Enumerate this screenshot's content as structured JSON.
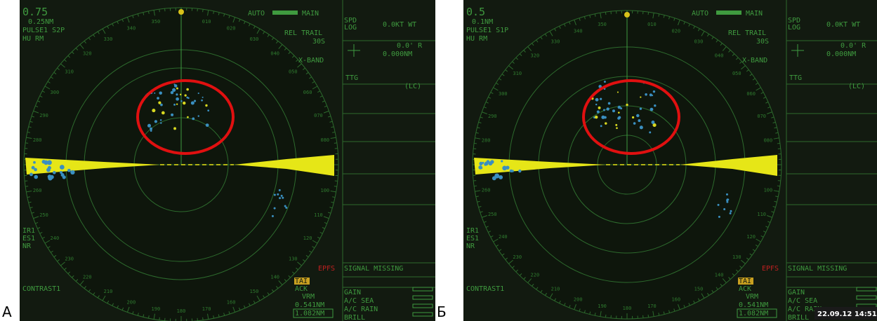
{
  "panels": [
    {
      "label": "А",
      "range": "0.75",
      "rings": "0.25NM",
      "pulse": "PULSE1 S2P",
      "mode": "HU RM",
      "auto": "AUTO",
      "main": "MAIN",
      "trail": "REL TRAIL",
      "trail_time": "30S",
      "band": "X-BAND",
      "spd": "SPD",
      "log": "LOG",
      "speed": "0.0KT WT",
      "bearing": "0.0' R",
      "distance": "0.000NM",
      "ttg": "TTG",
      "lc": "(LC)",
      "ir": "IR1",
      "es": "ES1",
      "nr": "NR",
      "contrast": "CONTRAST1",
      "epfs": "EPFS",
      "signal": "SIGNAL MISSING",
      "tai": "TAI",
      "ack": "ACK",
      "vrm": "VRM",
      "vrm1": "0.541NM",
      "vrm2": "1.082NM",
      "gain": "GAIN",
      "sea": "A/C SEA",
      "rain": "A/C RAIN",
      "brill": "BRILL"
    },
    {
      "label": "Б",
      "range": "0.5",
      "rings": "0.1NM",
      "pulse": "PULSE1 S1P",
      "mode": "HU RM",
      "auto": "AUTO",
      "main": "MAIN",
      "trail": "REL TRAIL",
      "trail_time": "30S",
      "band": "X-BAND",
      "spd": "SPD",
      "log": "LOG",
      "speed": "0.0KT WT",
      "bearing": "0.0' R",
      "distance": "0.000NM",
      "ttg": "TTG",
      "lc": "(LC)",
      "ir": "IR1",
      "es": "ES1",
      "nr": "NR",
      "contrast": "CONTRAST1",
      "epfs": "EPFS",
      "signal": "SIGNAL MISSING",
      "tai": "TAI",
      "ack": "ACK",
      "vrm": "VRM",
      "vrm1": "0.541NM",
      "vrm2": "1.082NM",
      "gain": "GAIN",
      "sea": "A/C SEA",
      "rain": "A/C RAIN",
      "brill": "BRILL"
    }
  ],
  "bearing_labels": [
    "010",
    "020",
    "030",
    "040",
    "050",
    "060",
    "070",
    "080",
    "090",
    "100",
    "110",
    "120",
    "130",
    "140",
    "150",
    "160",
    "170",
    "180",
    "190",
    "200",
    "210",
    "220",
    "230",
    "240",
    "250",
    "260",
    "270",
    "280",
    "290",
    "300",
    "310",
    "320",
    "330",
    "340",
    "350"
  ],
  "timestamp": "22.09.12 14:51:39"
}
